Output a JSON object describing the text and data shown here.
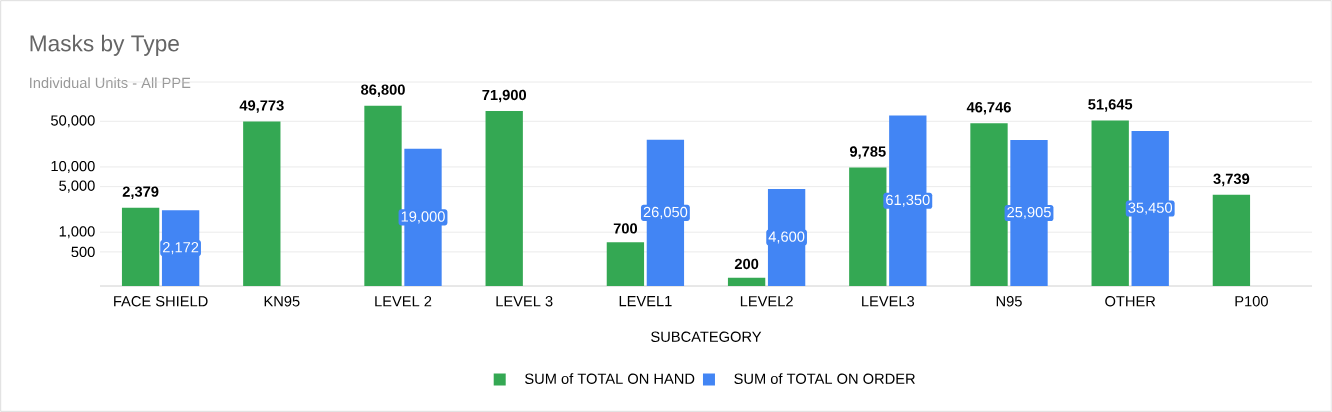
{
  "chart_data": {
    "type": "bar",
    "title": "Masks by Type",
    "subtitle": "Individual Units - All PPE",
    "xlabel": "SUBCATEGORY",
    "categories": [
      "FACE SHIELD",
      "KN95",
      "LEVEL 2",
      "LEVEL 3",
      "LEVEL1",
      "LEVEL2",
      "LEVEL3",
      "N95",
      "OTHER",
      "P100"
    ],
    "series": [
      {
        "name": "SUM of TOTAL ON HAND",
        "color": "#34a853",
        "values": [
          2379,
          49773,
          86800,
          71900,
          700,
          200,
          9785,
          46746,
          51645,
          3739
        ],
        "value_labels": [
          "2,379",
          "49,773",
          "86,800",
          "71,900",
          "700",
          "200",
          "9,785",
          "46,746",
          "51,645",
          "3,739"
        ]
      },
      {
        "name": "SUM of TOTAL ON ORDER",
        "color": "#4285f4",
        "values": [
          2172,
          null,
          19000,
          null,
          26050,
          4600,
          61350,
          25905,
          35450,
          null
        ],
        "value_labels": [
          "2,172",
          null,
          "19,000",
          null,
          "26,050",
          "4,600",
          "61,350",
          "25,905",
          "35,450",
          null
        ]
      }
    ],
    "log": "y",
    "ylim": [
      150,
      200000
    ],
    "yticks": [
      500,
      {
        "value": 1000,
        "label": "1,000"
      },
      {
        "value": 5000,
        "label": "5,000"
      },
      {
        "value": 10000,
        "label": "10,000"
      },
      {
        "value": 50000,
        "label": "50,000"
      }
    ],
    "grid": "y",
    "legend": "bottom"
  }
}
